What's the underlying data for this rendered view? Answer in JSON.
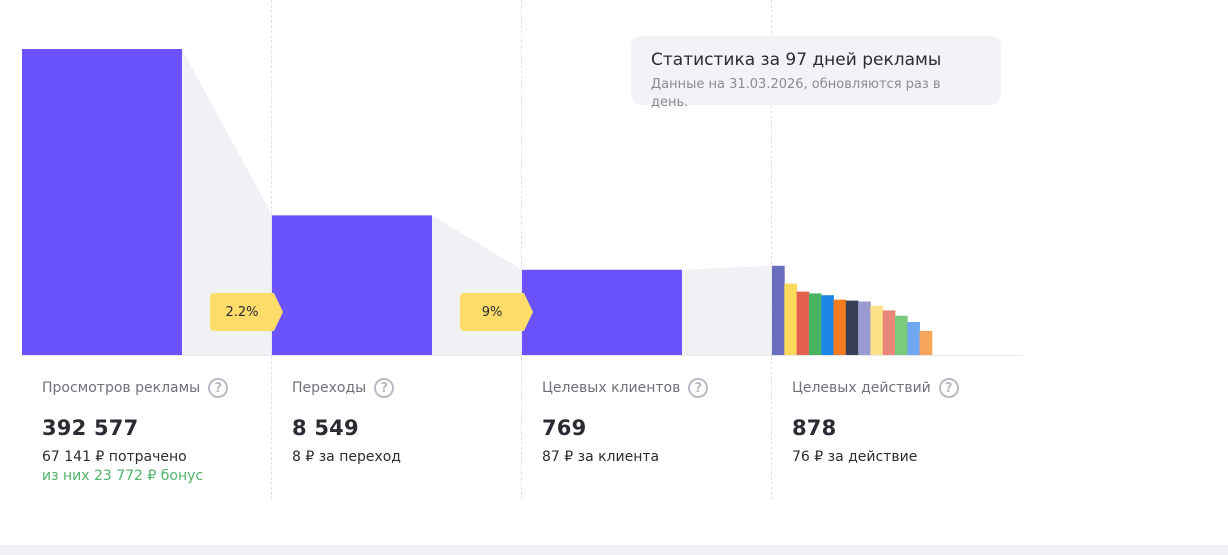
{
  "chart_data": {
    "type": "bar",
    "categories": [
      "Просмотров рекламы",
      "Переходы",
      "Целевых клиентов",
      "Целевых действий"
    ],
    "values": [
      392577,
      8549,
      769,
      878
    ],
    "actions_breakdown": {
      "values": [
        100,
        80,
        71,
        69,
        67,
        62,
        61,
        60,
        55,
        50,
        44,
        37,
        27
      ],
      "colors": [
        "#6a6ec0",
        "#fdd95c",
        "#e4604e",
        "#47b560",
        "#1e87e6",
        "#f47c1f",
        "#3a3f58",
        "#9b9bd2",
        "#fde28a",
        "#e9887a",
        "#7bcb7f",
        "#6fa8f0",
        "#f5a55a"
      ]
    },
    "conversions": [
      "2.2%",
      "9%"
    ],
    "colors": {
      "bar": "#6a52fe",
      "connector": "#f0f1f5",
      "baseline": "#e7e8ec"
    }
  },
  "tooltip": {
    "title": "Статистика за 97 дней рекламы",
    "subtitle": "Данные на 31.03.2026, обновляются раз в день."
  },
  "metrics": [
    {
      "label": "Просмотров рекламы",
      "value": "392 577",
      "sub": "67 141 ₽ потрачено",
      "bonus": "из них 23 772 ₽ бонус"
    },
    {
      "label": "Переходы",
      "value": "8 549",
      "sub": "8 ₽ за переход"
    },
    {
      "label": "Целевых клиентов",
      "value": "769",
      "sub": "87 ₽ за клиента"
    },
    {
      "label": "Целевых действий",
      "value": "878",
      "sub": "76 ₽ за действие"
    }
  ],
  "help_icon": "question-icon"
}
